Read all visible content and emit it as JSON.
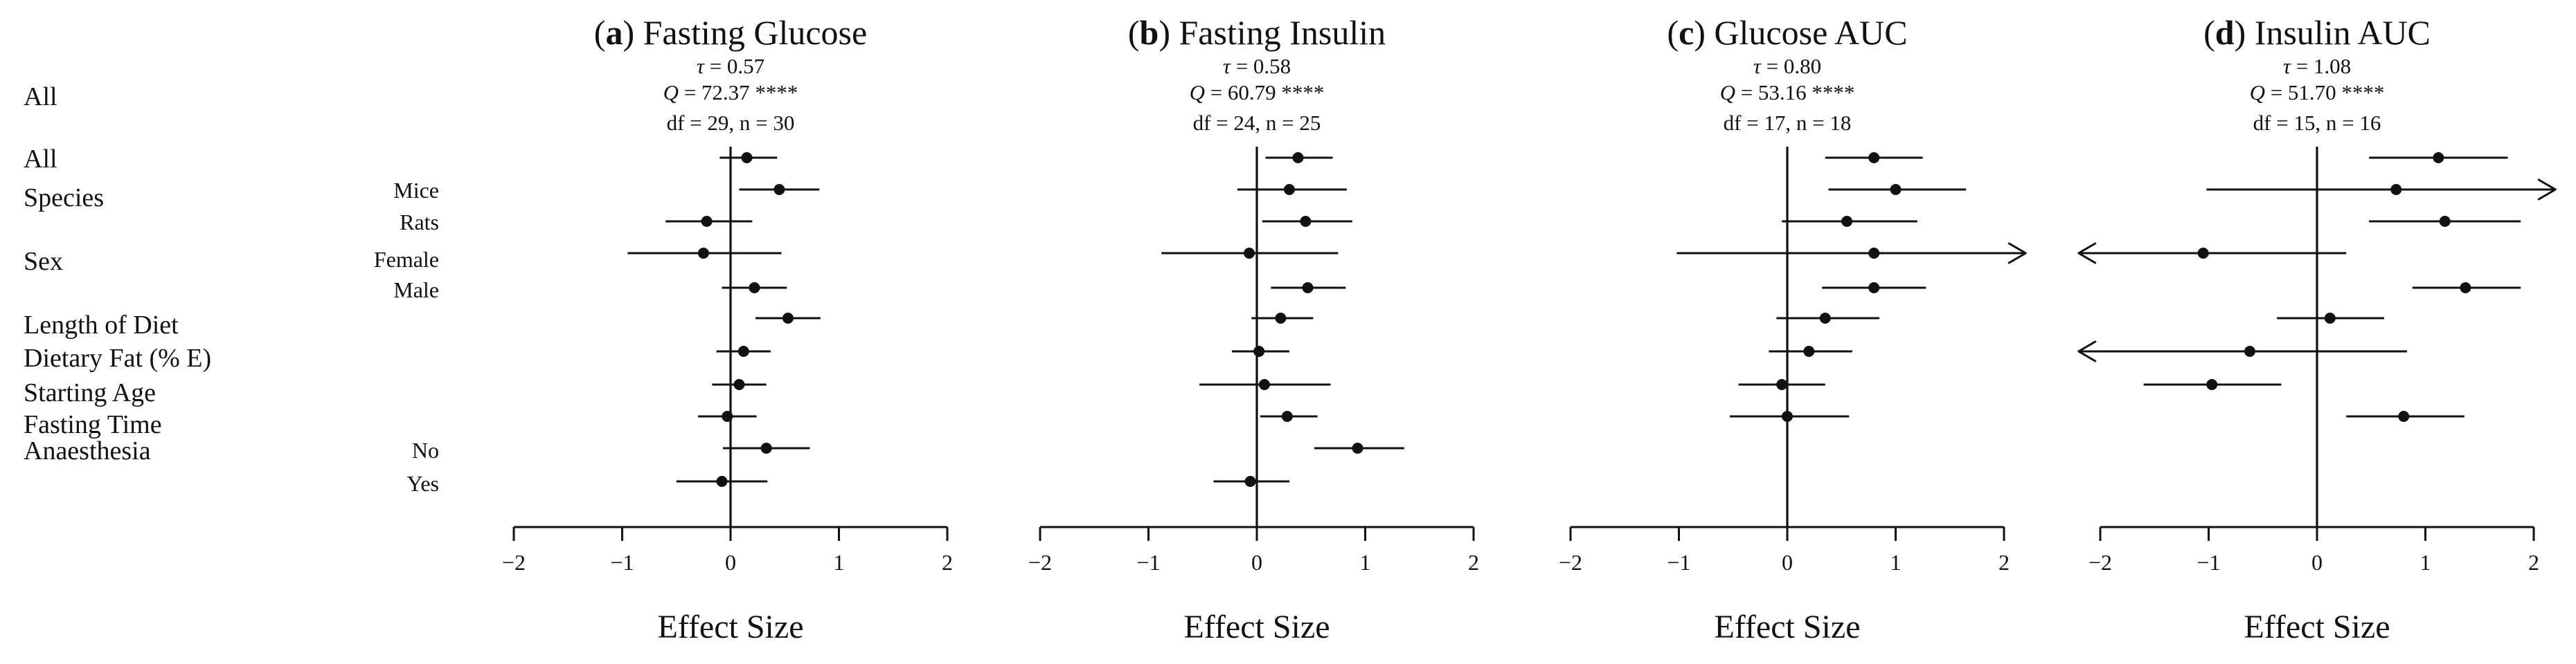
{
  "row_labels": {
    "all_summary": "All",
    "groups": [
      {
        "key": "all",
        "label": "All"
      },
      {
        "key": "species",
        "label": "Species"
      },
      {
        "key": "sex",
        "label": "Sex"
      },
      {
        "key": "length",
        "label": "Length of Diet"
      },
      {
        "key": "fat",
        "label": "Dietary Fat (% E)"
      },
      {
        "key": "age",
        "label": "Starting Age"
      },
      {
        "key": "fasting",
        "label": "Fasting Time"
      },
      {
        "key": "anaesthesia",
        "label": "Anaesthesia"
      }
    ],
    "subgroups": [
      {
        "key": "mice",
        "label": "Mice"
      },
      {
        "key": "rats",
        "label": "Rats"
      },
      {
        "key": "female",
        "label": "Female"
      },
      {
        "key": "male",
        "label": "Male"
      },
      {
        "key": "no",
        "label": "No"
      },
      {
        "key": "yes",
        "label": "Yes"
      }
    ]
  },
  "chart_data": [
    {
      "type": "forest",
      "panel_letter": "a",
      "title": "Fasting Glucose",
      "tau_label": "τ",
      "tau_value": "= 0.57",
      "q_label": "Q",
      "q_value": "= 72.37 ****",
      "df_line": "df = 29, n = 30",
      "xlabel": "Effect Size",
      "xlim": [
        -2,
        2
      ],
      "ticks": [
        -2,
        -1,
        0,
        1,
        2
      ],
      "tick_labels": [
        "−2",
        "−1",
        "0",
        "1",
        "2"
      ],
      "rows": [
        {
          "row": "All",
          "est": 0.15,
          "lo": -0.1,
          "hi": 0.43
        },
        {
          "row": "Mice",
          "est": 0.45,
          "lo": 0.08,
          "hi": 0.82
        },
        {
          "row": "Rats",
          "est": -0.22,
          "lo": -0.6,
          "hi": 0.2
        },
        {
          "row": "Female",
          "est": -0.25,
          "lo": -0.95,
          "hi": 0.47
        },
        {
          "row": "Male",
          "est": 0.22,
          "lo": -0.08,
          "hi": 0.52
        },
        {
          "row": "Length of Diet",
          "est": 0.53,
          "lo": 0.23,
          "hi": 0.83
        },
        {
          "row": "Dietary Fat (% E)",
          "est": 0.12,
          "lo": -0.13,
          "hi": 0.37
        },
        {
          "row": "Starting Age",
          "est": 0.08,
          "lo": -0.17,
          "hi": 0.33
        },
        {
          "row": "Fasting Time",
          "est": -0.03,
          "lo": -0.3,
          "hi": 0.24
        },
        {
          "row": "No",
          "est": 0.33,
          "lo": -0.07,
          "hi": 0.73
        },
        {
          "row": "Yes",
          "est": -0.08,
          "lo": -0.5,
          "hi": 0.34
        }
      ]
    },
    {
      "type": "forest",
      "panel_letter": "b",
      "title": "Fasting Insulin",
      "tau_label": "τ",
      "tau_value": "= 0.58",
      "q_label": "Q",
      "q_value": "= 60.79 ****",
      "df_line": "df = 24, n = 25",
      "xlabel": "Effect Size",
      "xlim": [
        -2,
        2
      ],
      "ticks": [
        -2,
        -1,
        0,
        1,
        2
      ],
      "tick_labels": [
        "−2",
        "−1",
        "0",
        "1",
        "2"
      ],
      "rows": [
        {
          "row": "All",
          "est": 0.38,
          "lo": 0.08,
          "hi": 0.7
        },
        {
          "row": "Mice",
          "est": 0.3,
          "lo": -0.18,
          "hi": 0.83
        },
        {
          "row": "Rats",
          "est": 0.45,
          "lo": 0.05,
          "hi": 0.88
        },
        {
          "row": "Female",
          "est": -0.07,
          "lo": -0.88,
          "hi": 0.75
        },
        {
          "row": "Male",
          "est": 0.47,
          "lo": 0.13,
          "hi": 0.82
        },
        {
          "row": "Length of Diet",
          "est": 0.22,
          "lo": -0.05,
          "hi": 0.52
        },
        {
          "row": "Dietary Fat (% E)",
          "est": 0.02,
          "lo": -0.23,
          "hi": 0.3
        },
        {
          "row": "Starting Age",
          "est": 0.07,
          "lo": -0.53,
          "hi": 0.68
        },
        {
          "row": "Fasting Time",
          "est": 0.28,
          "lo": 0.03,
          "hi": 0.56
        },
        {
          "row": "No",
          "est": 0.93,
          "lo": 0.53,
          "hi": 1.36
        },
        {
          "row": "Yes",
          "est": -0.06,
          "lo": -0.4,
          "hi": 0.3
        }
      ]
    },
    {
      "type": "forest",
      "panel_letter": "c",
      "title": "Glucose AUC",
      "tau_label": "τ",
      "tau_value": "= 0.80",
      "q_label": "Q",
      "q_value": "= 53.16 ****",
      "df_line": "df = 17, n = 18",
      "xlabel": "Effect Size",
      "xlim": [
        -2,
        2
      ],
      "ticks": [
        -2,
        -1,
        0,
        1,
        2
      ],
      "tick_labels": [
        "−2",
        "−1",
        "0",
        "1",
        "2"
      ],
      "rows": [
        {
          "row": "All",
          "est": 0.8,
          "lo": 0.35,
          "hi": 1.25
        },
        {
          "row": "Mice",
          "est": 1.0,
          "lo": 0.38,
          "hi": 1.65
        },
        {
          "row": "Rats",
          "est": 0.55,
          "lo": -0.05,
          "hi": 1.2
        },
        {
          "row": "Female",
          "est": 0.8,
          "lo": -1.02,
          "hi": 2.2,
          "arrow_right": true
        },
        {
          "row": "Male",
          "est": 0.8,
          "lo": 0.32,
          "hi": 1.28
        },
        {
          "row": "Length of Diet",
          "est": 0.35,
          "lo": -0.1,
          "hi": 0.85
        },
        {
          "row": "Dietary Fat (% E)",
          "est": 0.2,
          "lo": -0.17,
          "hi": 0.6
        },
        {
          "row": "Starting Age",
          "est": -0.05,
          "lo": -0.45,
          "hi": 0.35
        },
        {
          "row": "Fasting Time",
          "est": 0.0,
          "lo": -0.53,
          "hi": 0.57
        }
      ]
    },
    {
      "type": "forest",
      "panel_letter": "d",
      "title": "Insulin AUC",
      "tau_label": "τ",
      "tau_value": "= 1.08",
      "q_label": "Q",
      "q_value": "= 51.70 ****",
      "df_line": "df = 15, n = 16",
      "xlabel": "Effect Size",
      "xlim": [
        -2,
        2
      ],
      "ticks": [
        -2,
        -1,
        0,
        1,
        2
      ],
      "tick_labels": [
        "−2",
        "−1",
        "0",
        "1",
        "2"
      ],
      "rows": [
        {
          "row": "All",
          "est": 1.12,
          "lo": 0.48,
          "hi": 1.76
        },
        {
          "row": "Mice",
          "est": 0.73,
          "lo": -1.02,
          "hi": 2.2,
          "arrow_right": true
        },
        {
          "row": "Rats",
          "est": 1.18,
          "lo": 0.48,
          "hi": 1.88
        },
        {
          "row": "Female",
          "est": -1.05,
          "lo": -2.2,
          "hi": 0.27,
          "arrow_left": true
        },
        {
          "row": "Male",
          "est": 1.37,
          "lo": 0.88,
          "hi": 1.88
        },
        {
          "row": "Length of Diet",
          "est": 0.12,
          "lo": -0.37,
          "hi": 0.62
        },
        {
          "row": "Dietary Fat (% E)",
          "est": -0.62,
          "lo": -2.2,
          "hi": 0.83,
          "arrow_left": true
        },
        {
          "row": "Starting Age",
          "est": -0.97,
          "lo": -1.6,
          "hi": -0.33
        },
        {
          "row": "Fasting Time",
          "est": 0.8,
          "lo": 0.27,
          "hi": 1.36
        }
      ]
    }
  ]
}
